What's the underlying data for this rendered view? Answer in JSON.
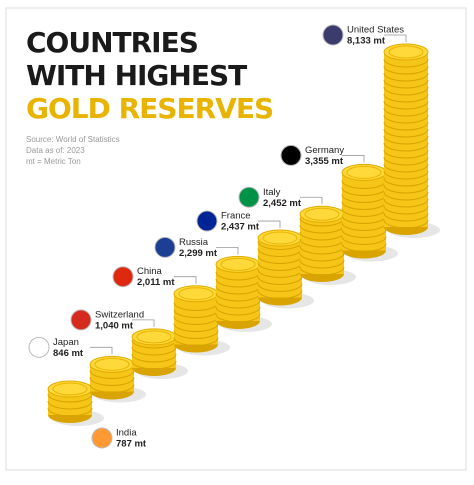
{
  "chart_data": {
    "type": "coin-stacks",
    "title_lines": [
      "COUNTRIES",
      "WITH HIGHEST",
      "GOLD RESERVES"
    ],
    "notes": [
      "Source: World of Statistics",
      "Data as of: 2023",
      "mt = Metric Ton"
    ],
    "categories": [
      "India",
      "Japan",
      "Switzerland",
      "China",
      "Russia",
      "France",
      "Italy",
      "Germany",
      "United States"
    ],
    "values": [
      787,
      846,
      1040,
      2011,
      2299,
      2437,
      2452,
      3355,
      8133
    ],
    "value_labels": [
      "787 mt",
      "846 mt",
      "1,040 mt",
      "2,011 mt",
      "2,299 mt",
      "2,437 mt",
      "2,452 mt",
      "3,355 mt",
      "8,133 mt"
    ],
    "color": "#f5c518"
  }
}
